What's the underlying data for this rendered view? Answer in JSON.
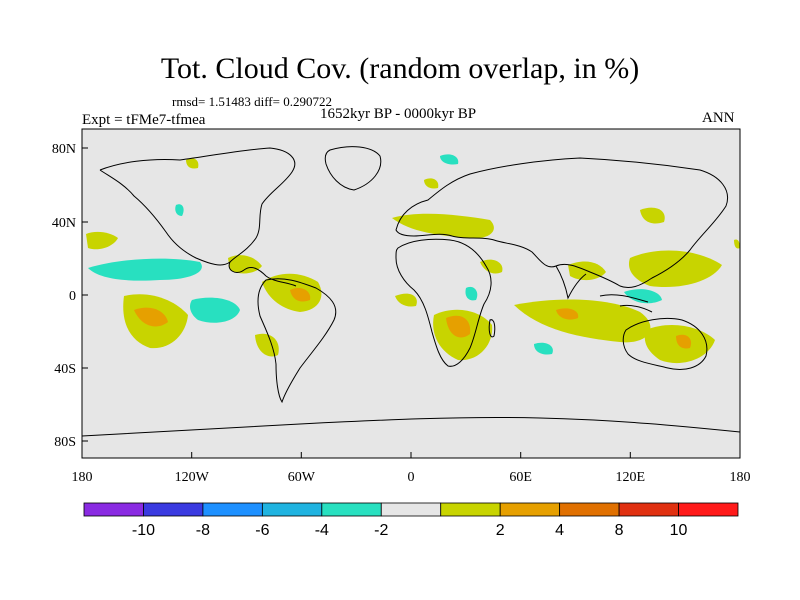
{
  "title": "Tot. Cloud Cov. (random overlap, in %)",
  "stats": "rmsd= 1.51483 diff= 0.290722",
  "period": "1652kyr BP - 0000kyr BP",
  "experiment": "Expt = tFMe7-tfmea",
  "season": "ANN",
  "x_ticks": [
    "180",
    "120W",
    "60W",
    "0",
    "60E",
    "120E",
    "180"
  ],
  "y_ticks": [
    "80N",
    "40N",
    "0",
    "40S",
    "80S"
  ],
  "colorbar": {
    "colors": [
      "#8a2be2",
      "#3a3ae0",
      "#1e90ff",
      "#1fb3e0",
      "#28e0c0",
      "#e6e6e6",
      "#c8d400",
      "#e6a000",
      "#e07000",
      "#e03010",
      "#ff1a1a"
    ],
    "labels": [
      "-10",
      "-8",
      "-6",
      "-4",
      "-2",
      "2",
      "4",
      "8",
      "10"
    ]
  },
  "colors": {
    "background": "#e6e6e6",
    "positive_2_4": "#c8d400",
    "positive_4_8": "#e6a000",
    "negative_2_4": "#28e0c0"
  }
}
